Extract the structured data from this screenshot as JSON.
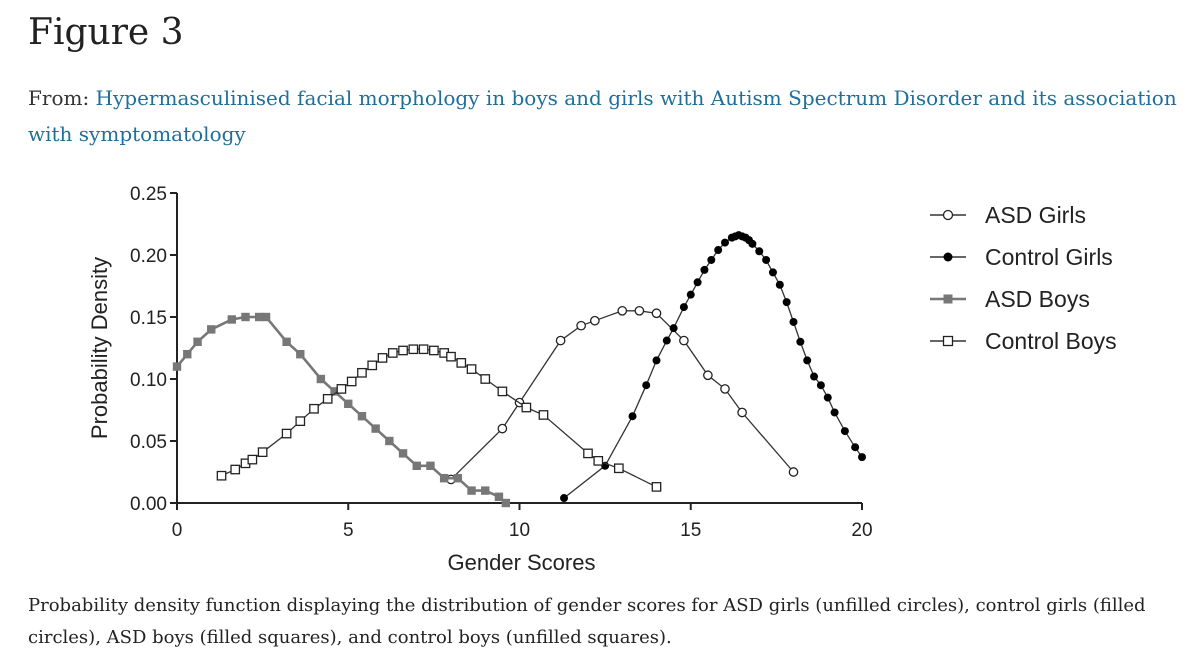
{
  "figure": {
    "title": "Figure 3",
    "from_prefix": "From: ",
    "from_link": "Hypermasculinised facial morphology in boys and girls with Autism Spectrum Disorder and its association with symptomatology",
    "caption": "Probability density function displaying the distribution of gender scores for ASD girls (unfilled circles), control girls (filled circles), ASD boys (filled squares), and control boys (unfilled squares)."
  },
  "colors": {
    "link": "#1f6f99",
    "axis": "#222222",
    "asd_boys": "#777777",
    "line": "#333333"
  },
  "chart_data": {
    "type": "line",
    "xlabel": "Gender Scores",
    "ylabel": "Probability Density",
    "xlim": [
      0,
      20
    ],
    "ylim": [
      0,
      0.25
    ],
    "x_ticks": [
      0,
      5,
      10,
      15,
      20
    ],
    "x_tick_labels": [
      "0",
      "5",
      "10",
      "15",
      "20"
    ],
    "y_ticks": [
      0,
      0.05,
      0.1,
      0.15,
      0.2,
      0.25
    ],
    "y_tick_labels": [
      "0.00",
      "0.05",
      "0.10",
      "0.15",
      "0.20",
      "0.25"
    ],
    "legend_position": "right",
    "series": [
      {
        "name": "ASD Girls",
        "marker": "open-circle",
        "x": [
          8.0,
          9.5,
          10.0,
          11.2,
          11.8,
          12.2,
          13.0,
          13.5,
          14.0,
          14.8,
          15.5,
          16.0,
          16.5,
          18.0
        ],
        "y": [
          0.019,
          0.06,
          0.081,
          0.131,
          0.143,
          0.147,
          0.155,
          0.155,
          0.153,
          0.131,
          0.103,
          0.092,
          0.073,
          0.025
        ]
      },
      {
        "name": "Control Girls",
        "marker": "filled-circle",
        "x": [
          11.3,
          12.5,
          13.3,
          13.7,
          14.0,
          14.3,
          14.5,
          14.8,
          15.0,
          15.2,
          15.4,
          15.6,
          15.8,
          16.0,
          16.2,
          16.3,
          16.4,
          16.5,
          16.6,
          16.7,
          16.8,
          17.0,
          17.2,
          17.4,
          17.6,
          17.8,
          18.0,
          18.2,
          18.4,
          18.6,
          18.8,
          19.0,
          19.2,
          19.5,
          19.8,
          20.0
        ],
        "y": [
          0.004,
          0.03,
          0.07,
          0.095,
          0.115,
          0.131,
          0.141,
          0.158,
          0.168,
          0.178,
          0.188,
          0.196,
          0.204,
          0.21,
          0.214,
          0.215,
          0.216,
          0.215,
          0.214,
          0.212,
          0.209,
          0.203,
          0.196,
          0.186,
          0.176,
          0.162,
          0.146,
          0.13,
          0.115,
          0.102,
          0.095,
          0.085,
          0.073,
          0.058,
          0.045,
          0.037
        ]
      },
      {
        "name": "ASD Boys",
        "marker": "filled-square",
        "x": [
          0.0,
          0.3,
          0.6,
          1.0,
          1.6,
          2.0,
          2.4,
          2.6,
          3.2,
          3.6,
          4.2,
          4.6,
          5.0,
          5.4,
          5.8,
          6.2,
          6.6,
          7.0,
          7.4,
          7.8,
          8.2,
          8.6,
          9.0,
          9.4,
          9.6
        ],
        "y": [
          0.11,
          0.12,
          0.13,
          0.14,
          0.148,
          0.15,
          0.15,
          0.15,
          0.13,
          0.12,
          0.1,
          0.09,
          0.08,
          0.07,
          0.06,
          0.05,
          0.04,
          0.03,
          0.03,
          0.02,
          0.02,
          0.01,
          0.01,
          0.005,
          0.0
        ]
      },
      {
        "name": "Control Boys",
        "marker": "open-square",
        "x": [
          1.3,
          1.7,
          2.0,
          2.2,
          2.5,
          3.2,
          3.6,
          4.0,
          4.4,
          4.8,
          5.1,
          5.4,
          5.7,
          6.0,
          6.3,
          6.6,
          6.9,
          7.2,
          7.5,
          7.8,
          8.0,
          8.3,
          8.6,
          9.0,
          9.5,
          10.2,
          10.7,
          12.0,
          12.3,
          12.9,
          14.0
        ],
        "y": [
          0.022,
          0.027,
          0.032,
          0.035,
          0.041,
          0.056,
          0.066,
          0.076,
          0.084,
          0.092,
          0.098,
          0.105,
          0.111,
          0.117,
          0.121,
          0.123,
          0.124,
          0.124,
          0.123,
          0.121,
          0.118,
          0.113,
          0.108,
          0.1,
          0.09,
          0.077,
          0.071,
          0.04,
          0.034,
          0.028,
          0.013
        ]
      }
    ]
  }
}
